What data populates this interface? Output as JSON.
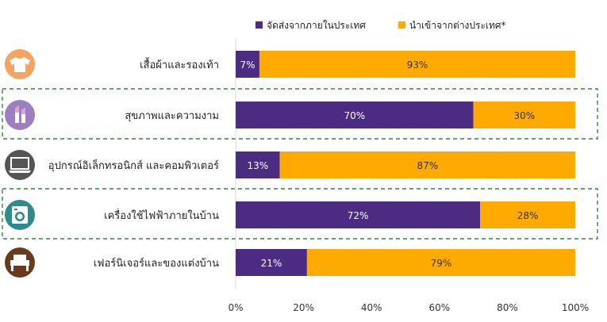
{
  "chart_data": {
    "type": "bar",
    "orientation": "horizontal",
    "stacked": true,
    "percent_stacked": true,
    "categories": [
      "เสื้อผ้าและรองเท้า",
      "สุขภาพและความงาม",
      "อุปกรณ์อิเล็กทรอนิกส์ และคอมพิวเตอร์",
      "เครื่องใช้ไฟฟ้าภายในบ้าน",
      "เฟอร์นิเจอร์และของแต่งบ้าน"
    ],
    "category_icons": [
      "shirt-icon",
      "lipstick-icon",
      "laptop-icon",
      "washing-machine-icon",
      "armchair-icon"
    ],
    "icon_colors": [
      "#F4A460",
      "#9B7FC0",
      "#555555",
      "#2E8B8B",
      "#6B3A1E"
    ],
    "highlighted": [
      false,
      true,
      false,
      true,
      false
    ],
    "series": [
      {
        "name": "จัดส่งจากภายในประเทศ",
        "color": "#4B2C82",
        "values": [
          7,
          70,
          13,
          72,
          21
        ]
      },
      {
        "name": "นำเข้าจากต่างประเทศ*",
        "color": "#FFAA00",
        "values": [
          93,
          30,
          87,
          28,
          79
        ]
      }
    ],
    "data_labels": [
      [
        "7%",
        "70%",
        "13%",
        "72%",
        "21%"
      ],
      [
        "93%",
        "30%",
        "87%",
        "28%",
        "79%"
      ]
    ],
    "xlim": [
      0,
      100
    ],
    "xticks": [
      0,
      20,
      40,
      60,
      80,
      100
    ],
    "xtick_labels": [
      "0%",
      "20%",
      "40%",
      "60%",
      "80%",
      "100%"
    ],
    "legend_position": "top",
    "grid": false
  }
}
